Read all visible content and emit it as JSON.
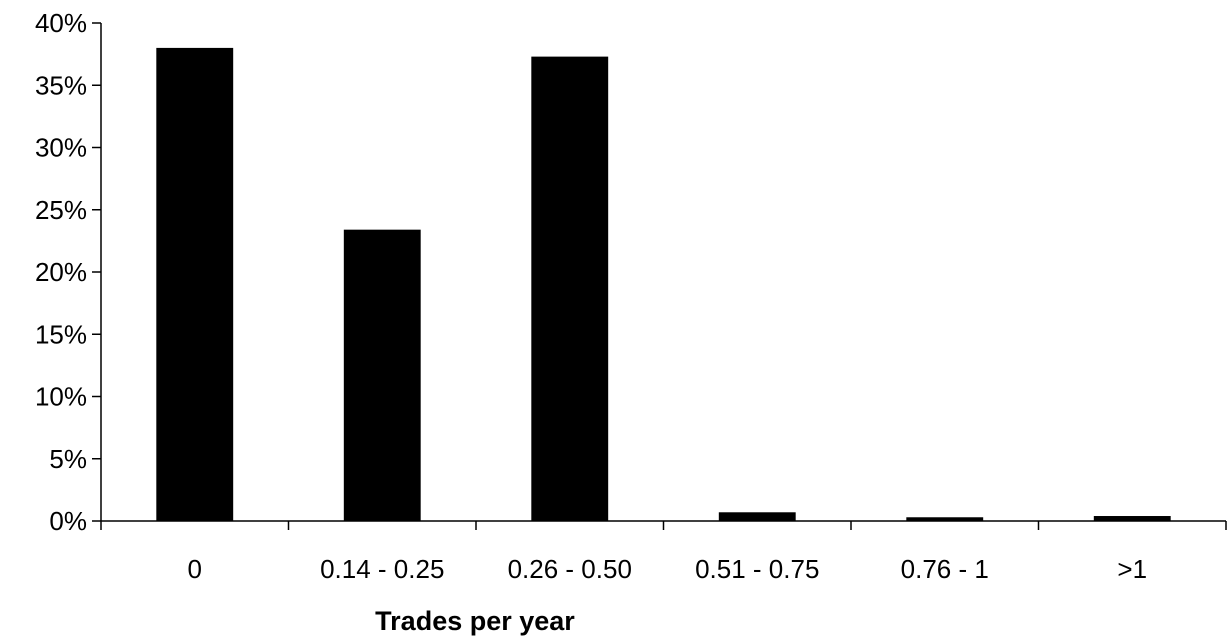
{
  "chart_data": {
    "type": "bar",
    "title": "",
    "xlabel": "Trades per year",
    "ylabel": "",
    "categories": [
      "0",
      "0.14 - 0.25",
      "0.26 - 0.50",
      "0.51 - 0.75",
      "0.76 - 1",
      ">1"
    ],
    "values": [
      0.38,
      0.234,
      0.373,
      0.007,
      0.003,
      0.004
    ],
    "ylim": [
      0,
      0.4
    ],
    "yticks": [
      0,
      0.05,
      0.1,
      0.15,
      0.2,
      0.25,
      0.3,
      0.35,
      0.4
    ],
    "ytick_labels": [
      "0%",
      "5%",
      "10%",
      "15%",
      "20%",
      "25%",
      "30%",
      "35%",
      "40%"
    ],
    "grid": false,
    "legend": "none",
    "bar_color": "#000000"
  }
}
